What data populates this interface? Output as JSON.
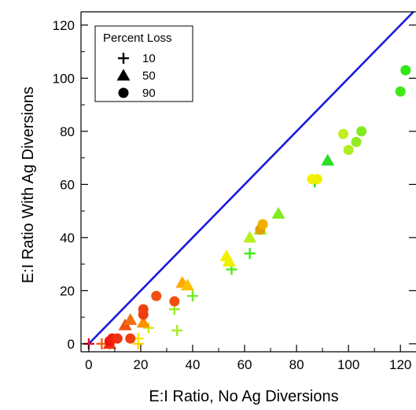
{
  "chart_data": {
    "type": "scatter",
    "xlabel": "E:I Ratio, No Ag Diversions",
    "ylabel": "E:I Ratio With Ag Diversions",
    "xlim": [
      -3,
      126
    ],
    "ylim": [
      -3,
      125
    ],
    "x_ticks": [
      0,
      20,
      40,
      60,
      80,
      100,
      120
    ],
    "y_ticks": [
      0,
      20,
      40,
      60,
      80,
      100,
      120
    ],
    "x_tick_labels": [
      "0",
      "20",
      "40",
      "60",
      "80",
      "100",
      "120"
    ],
    "y_tick_labels": [
      "0",
      "20",
      "40",
      "60",
      "80",
      "100",
      "120"
    ],
    "reference_line": {
      "type": "1:1",
      "color": "#1a1adc"
    },
    "legend": {
      "title": "Percent Loss",
      "position": "top-left",
      "entries": [
        {
          "label": "10",
          "marker": "plus"
        },
        {
          "label": "50",
          "marker": "triangle"
        },
        {
          "label": "90",
          "marker": "circle"
        }
      ]
    },
    "color_scale": "marker color runs from red (low E:I ratio) through orange and yellow to green (high E:I ratio)",
    "series": [
      {
        "marker": "plus",
        "points": [
          {
            "x": 0,
            "y": 0,
            "color": "#e8102a"
          },
          {
            "x": 5,
            "y": 0,
            "color": "#f06010"
          },
          {
            "x": 8,
            "y": 0,
            "color": "#ff7a00"
          },
          {
            "x": 19,
            "y": 0,
            "color": "#ffd200"
          },
          {
            "x": 19,
            "y": 2,
            "color": "#f5e600"
          },
          {
            "x": 23,
            "y": 6,
            "color": "#c8ee10"
          },
          {
            "x": 34,
            "y": 5,
            "color": "#a6ee20"
          },
          {
            "x": 33,
            "y": 13,
            "color": "#9cee20"
          },
          {
            "x": 40,
            "y": 18,
            "color": "#74ec20"
          },
          {
            "x": 55,
            "y": 28,
            "color": "#50e818"
          },
          {
            "x": 62,
            "y": 34,
            "color": "#40e818"
          },
          {
            "x": 87,
            "y": 61,
            "color": "#20e020"
          }
        ]
      },
      {
        "marker": "triangle",
        "points": [
          {
            "x": 8,
            "y": 0,
            "color": "#f03010"
          },
          {
            "x": 14,
            "y": 7,
            "color": "#f05010"
          },
          {
            "x": 16,
            "y": 9,
            "color": "#f07010"
          },
          {
            "x": 21,
            "y": 8,
            "color": "#ff9000"
          },
          {
            "x": 36,
            "y": 23,
            "color": "#ffaa00"
          },
          {
            "x": 38,
            "y": 22,
            "color": "#ffc000"
          },
          {
            "x": 53,
            "y": 33,
            "color": "#f5f000"
          },
          {
            "x": 54,
            "y": 31,
            "color": "#eef000"
          },
          {
            "x": 62,
            "y": 40,
            "color": "#b8f020"
          },
          {
            "x": 66,
            "y": 43,
            "color": "#a0ec20"
          },
          {
            "x": 73,
            "y": 49,
            "color": "#80ec20"
          },
          {
            "x": 92,
            "y": 69,
            "color": "#28e020"
          }
        ]
      },
      {
        "marker": "circle",
        "points": [
          {
            "x": 8,
            "y": 1,
            "color": "#f01010"
          },
          {
            "x": 9,
            "y": 2,
            "color": "#f02010"
          },
          {
            "x": 11,
            "y": 2,
            "color": "#f03010"
          },
          {
            "x": 16,
            "y": 2,
            "color": "#f04010"
          },
          {
            "x": 21,
            "y": 11,
            "color": "#f04010"
          },
          {
            "x": 21,
            "y": 13,
            "color": "#f04010"
          },
          {
            "x": 26,
            "y": 18,
            "color": "#f05010"
          },
          {
            "x": 33,
            "y": 16,
            "color": "#f05010"
          },
          {
            "x": 66,
            "y": 43,
            "color": "#e0a000"
          },
          {
            "x": 67,
            "y": 45,
            "color": "#f0b000"
          },
          {
            "x": 86,
            "y": 62,
            "color": "#f5f000"
          },
          {
            "x": 88,
            "y": 62,
            "color": "#eef000"
          },
          {
            "x": 98,
            "y": 79,
            "color": "#c0ee20"
          },
          {
            "x": 100,
            "y": 73,
            "color": "#b0ee20"
          },
          {
            "x": 103,
            "y": 76,
            "color": "#90ec20"
          },
          {
            "x": 105,
            "y": 80,
            "color": "#80ec20"
          },
          {
            "x": 120,
            "y": 95,
            "color": "#40e818"
          },
          {
            "x": 122,
            "y": 103,
            "color": "#30e818"
          }
        ]
      }
    ]
  }
}
